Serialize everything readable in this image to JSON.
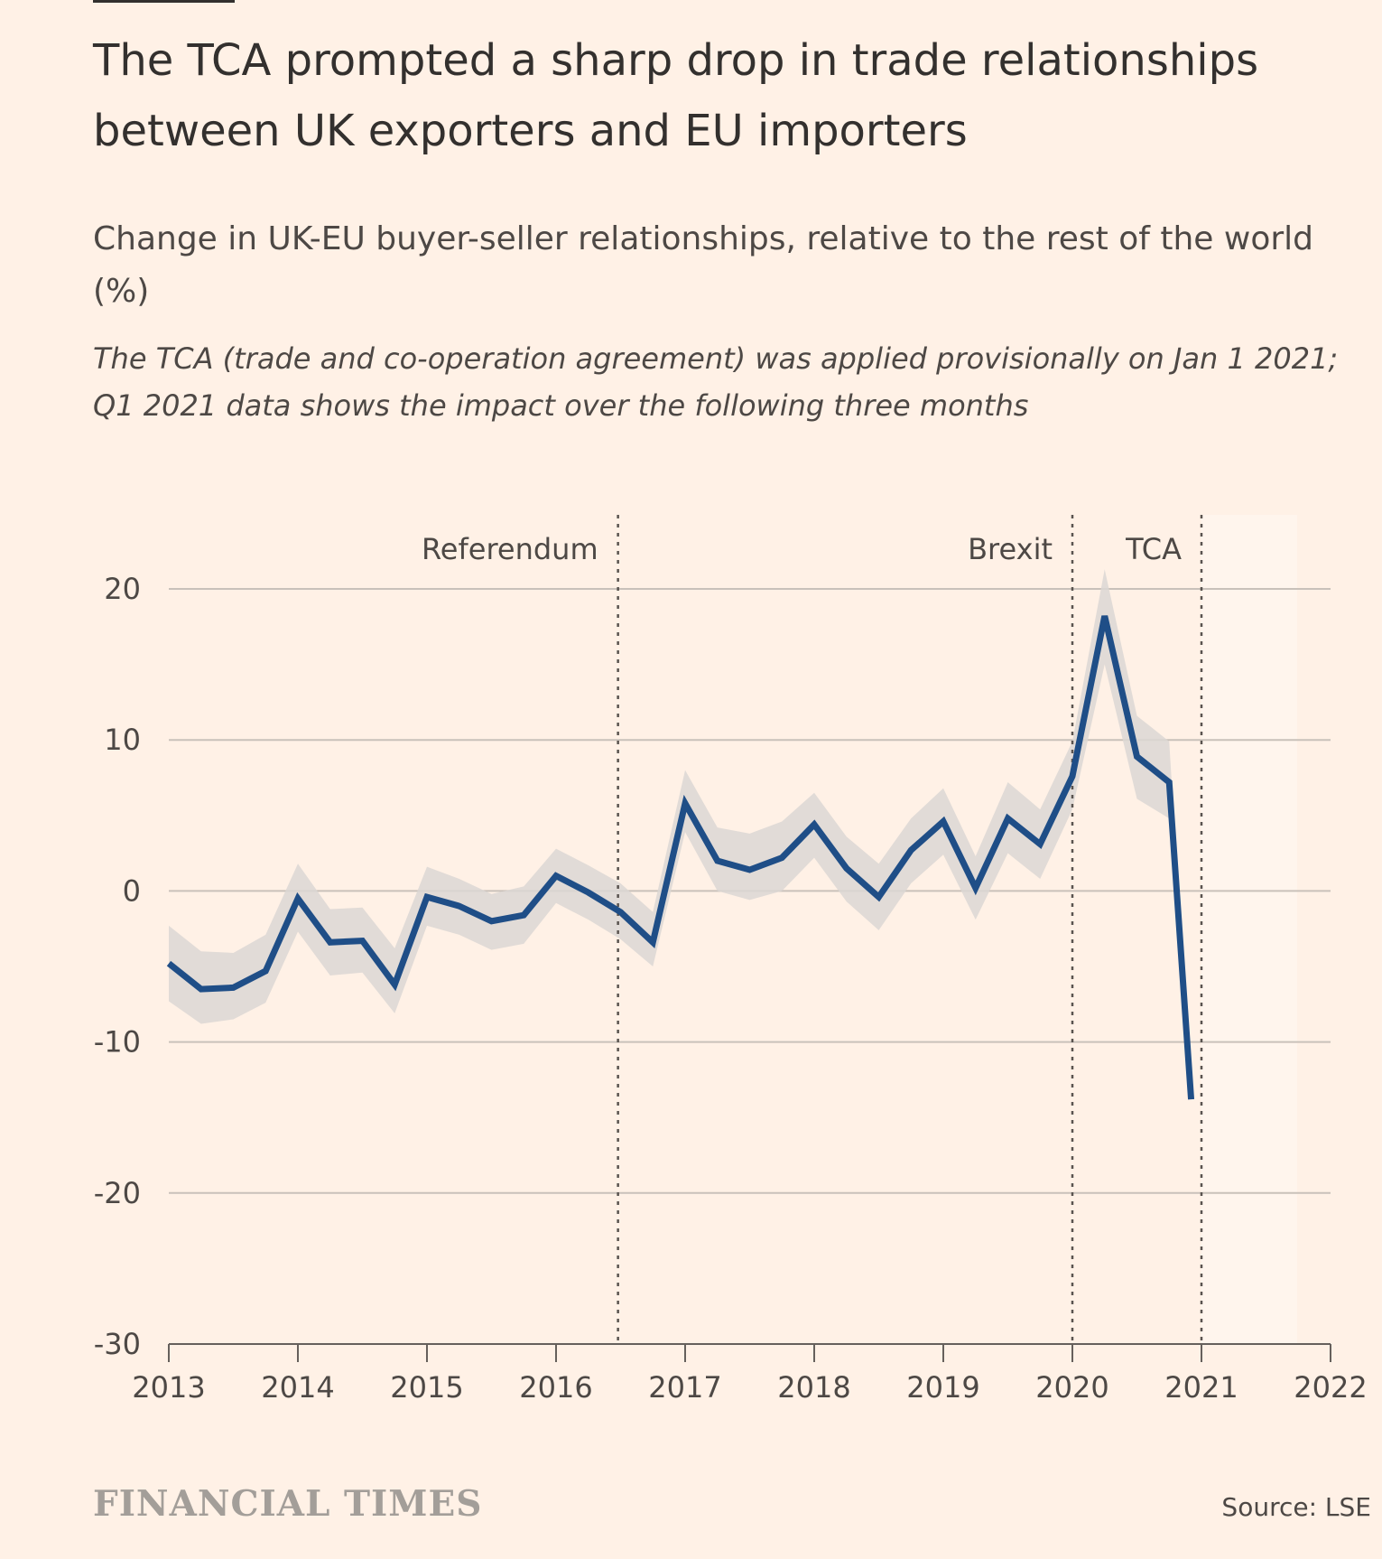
{
  "header": {
    "title": "The TCA prompted a sharp drop in trade relationships between UK exporters and EU importers",
    "subtitle": "Change in UK-EU buyer-seller relationships, relative to the rest of the world (%)",
    "note": "The TCA (trade and co-operation agreement) was applied provisionally on Jan 1 2021; Q1 2021 data shows the impact over the following three months"
  },
  "footer": {
    "brand": "FINANCIAL TIMES",
    "source": "Source: LSE"
  },
  "colors": {
    "background": "#fff1e6",
    "line": "#1f4e87",
    "band": "#dcd7d3",
    "grid": "#c9c1ba",
    "text": "#4d4845"
  },
  "chart_data": {
    "type": "line",
    "xlim": [
      2013,
      2022
    ],
    "ylim": [
      -30,
      20
    ],
    "x_ticks": [
      "2013",
      "2014",
      "2015",
      "2016",
      "2017",
      "2018",
      "2019",
      "2020",
      "2021",
      "2022"
    ],
    "y_ticks": [
      "20",
      "10",
      "0",
      "-10",
      "-20",
      "-30"
    ],
    "y_tick_values": [
      20,
      10,
      0,
      -10,
      -20,
      -30
    ],
    "grid": "horizontal",
    "series": [
      {
        "x": [
          2013.0,
          2013.25,
          2013.5,
          2013.75,
          2014.0,
          2014.25,
          2014.5,
          2014.75,
          2015.0,
          2015.25,
          2015.5,
          2015.75,
          2016.0,
          2016.25,
          2016.5,
          2016.75,
          2017.0,
          2017.25,
          2017.5,
          2017.75,
          2018.0,
          2018.25,
          2018.5,
          2018.75,
          2019.0,
          2019.25,
          2019.5,
          2019.75,
          2020.0,
          2020.25,
          2020.5,
          2020.75,
          2020.92
        ],
        "y": [
          -4.8,
          -6.5,
          -6.4,
          -5.3,
          -0.5,
          -3.4,
          -3.3,
          -6.2,
          -0.4,
          -1.0,
          -2.0,
          -1.6,
          1.0,
          -0.1,
          -1.4,
          -3.4,
          5.8,
          2.0,
          1.4,
          2.2,
          4.4,
          1.5,
          -0.4,
          2.7,
          4.6,
          0.2,
          4.8,
          3.1,
          7.6,
          18.2,
          8.9,
          7.2,
          -13.8
        ],
        "lower": [
          -7.3,
          -8.8,
          -8.5,
          -7.4,
          -2.7,
          -5.6,
          -5.4,
          -8.1,
          -2.3,
          -2.9,
          -3.9,
          -3.5,
          -0.8,
          -1.9,
          -3.2,
          -5.0,
          3.9,
          0.0,
          -0.6,
          0.0,
          2.2,
          -0.7,
          -2.6,
          0.5,
          2.4,
          -1.9,
          2.5,
          0.8,
          5.4,
          15.0,
          6.1,
          4.8,
          -13.8
        ],
        "upper": [
          -2.3,
          -4.0,
          -4.1,
          -2.9,
          1.8,
          -1.2,
          -1.1,
          -3.8,
          1.6,
          0.8,
          -0.2,
          0.3,
          2.8,
          1.7,
          0.5,
          -1.4,
          8.0,
          4.2,
          3.8,
          4.6,
          6.5,
          3.6,
          1.8,
          4.8,
          6.8,
          2.3,
          7.2,
          5.4,
          9.9,
          21.3,
          11.6,
          9.9,
          -13.8
        ]
      }
    ],
    "events": [
      {
        "label": "Referendum",
        "x": 2016.48,
        "label_side": "left"
      },
      {
        "label": "Brexit",
        "x": 2020.0,
        "label_side": "left"
      },
      {
        "label": "TCA",
        "x": 2021.0,
        "label_side": "left"
      }
    ]
  }
}
